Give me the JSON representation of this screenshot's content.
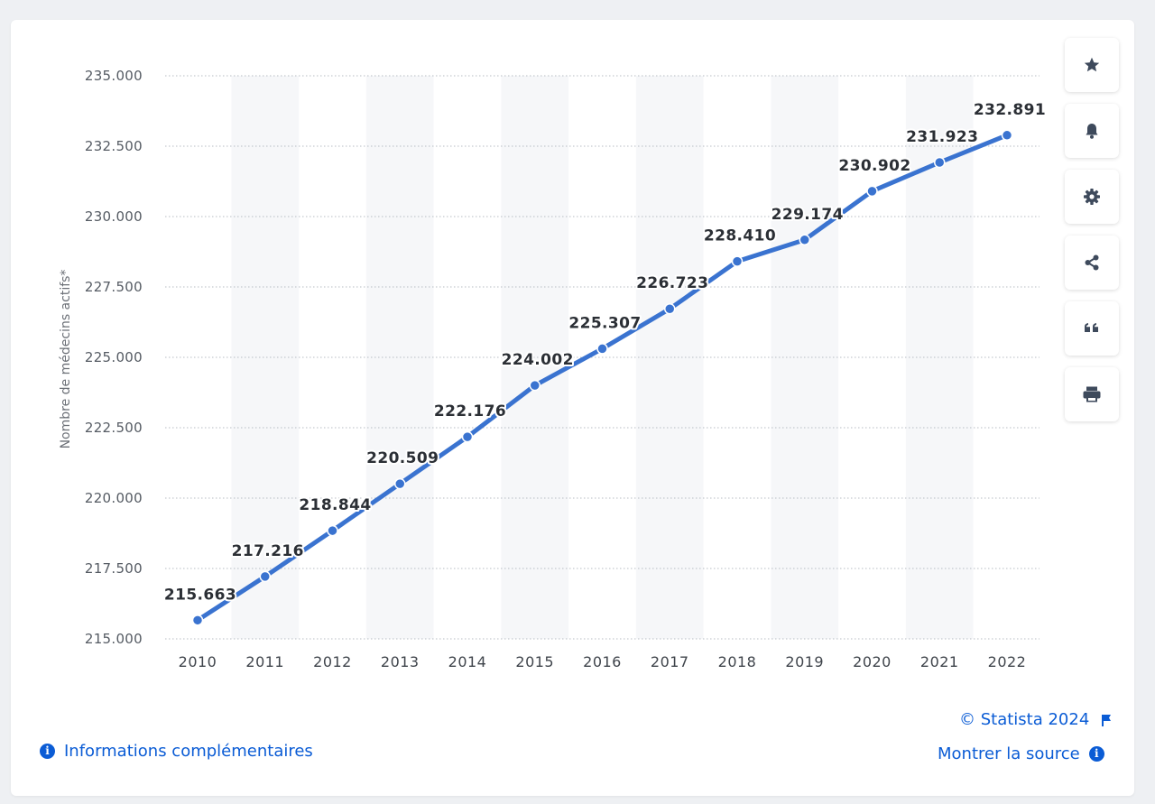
{
  "chart_data": {
    "type": "line",
    "categories": [
      "2010",
      "2011",
      "2012",
      "2013",
      "2014",
      "2015",
      "2016",
      "2017",
      "2018",
      "2019",
      "2020",
      "2021",
      "2022"
    ],
    "values": [
      215663,
      217216,
      218844,
      220509,
      222176,
      224002,
      225307,
      226723,
      228410,
      229174,
      230902,
      231923,
      232891
    ],
    "data_labels": [
      "215.663",
      "217.216",
      "218.844",
      "220.509",
      "222.176",
      "224.002",
      "225.307",
      "226.723",
      "228.410",
      "229.174",
      "230.902",
      "231.923",
      "232.891"
    ],
    "ylabel": "Nombre de médecins actifs*",
    "xlabel": "",
    "ylim": [
      215000,
      235000
    ],
    "yticks": [
      215000,
      217500,
      220000,
      222500,
      225000,
      227500,
      230000,
      232500,
      235000
    ],
    "ytick_labels": [
      "215.000",
      "217.500",
      "220.000",
      "222.500",
      "225.000",
      "227.500",
      "230.000",
      "232.500",
      "235.000"
    ],
    "grid": true,
    "line_color": "#3a73d0"
  },
  "toolbar": {
    "icons": [
      "star-icon",
      "bell-icon",
      "gear-icon",
      "share-icon",
      "quote-icon",
      "print-icon"
    ]
  },
  "footer": {
    "copyright": "© Statista 2024",
    "more_info": "Informations complémentaires",
    "show_source": "Montrer la source",
    "info_glyph": "i"
  }
}
